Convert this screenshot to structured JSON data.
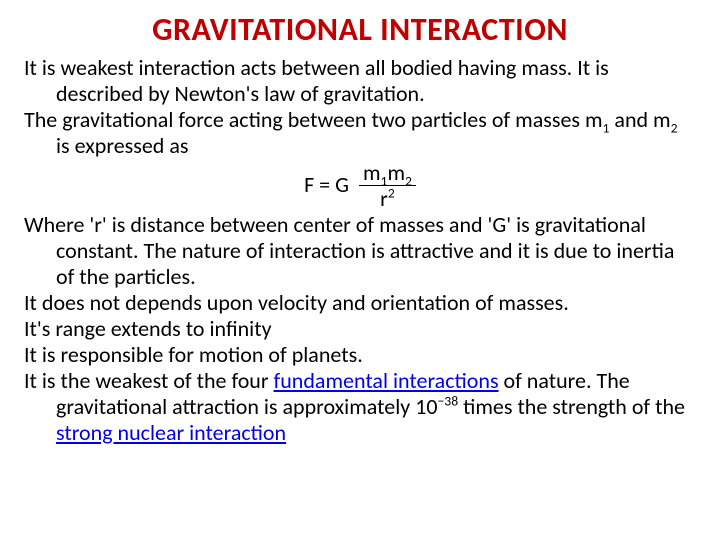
{
  "title": "GRAVITATIONAL INTERACTION",
  "para1a": "It is weakest interaction acts between all bodied having mass. It is described by Newton's law of gravitation.",
  "para2a": "The gravitational force acting between two particles of masses m",
  "para2b": " and m",
  "para2c": " is expressed as",
  "formula_lhs": "F  = G",
  "formula_num_a": "m",
  "formula_num_b": "m",
  "formula_den_a": "r",
  "para3": "Where 'r' is distance between center of masses and 'G' is gravitational constant. The nature of interaction is attractive and it is due to inertia of the particles.",
  "para4": "It does not depends upon velocity and orientation of masses.",
  "para5": "It's range extends to infinity",
  "para6": "It is responsible for motion of planets.",
  "para7a": "It is the weakest of the four ",
  "link1": "fundamental interactions",
  "para7b": " of nature. The gravitational attraction is approximately 10",
  "para7c": " times the strength of the ",
  "link2": "strong  nuclear interaction",
  "sub1": "1",
  "sub2": "2",
  "sup2": "2",
  "exp_neg38": "−38"
}
